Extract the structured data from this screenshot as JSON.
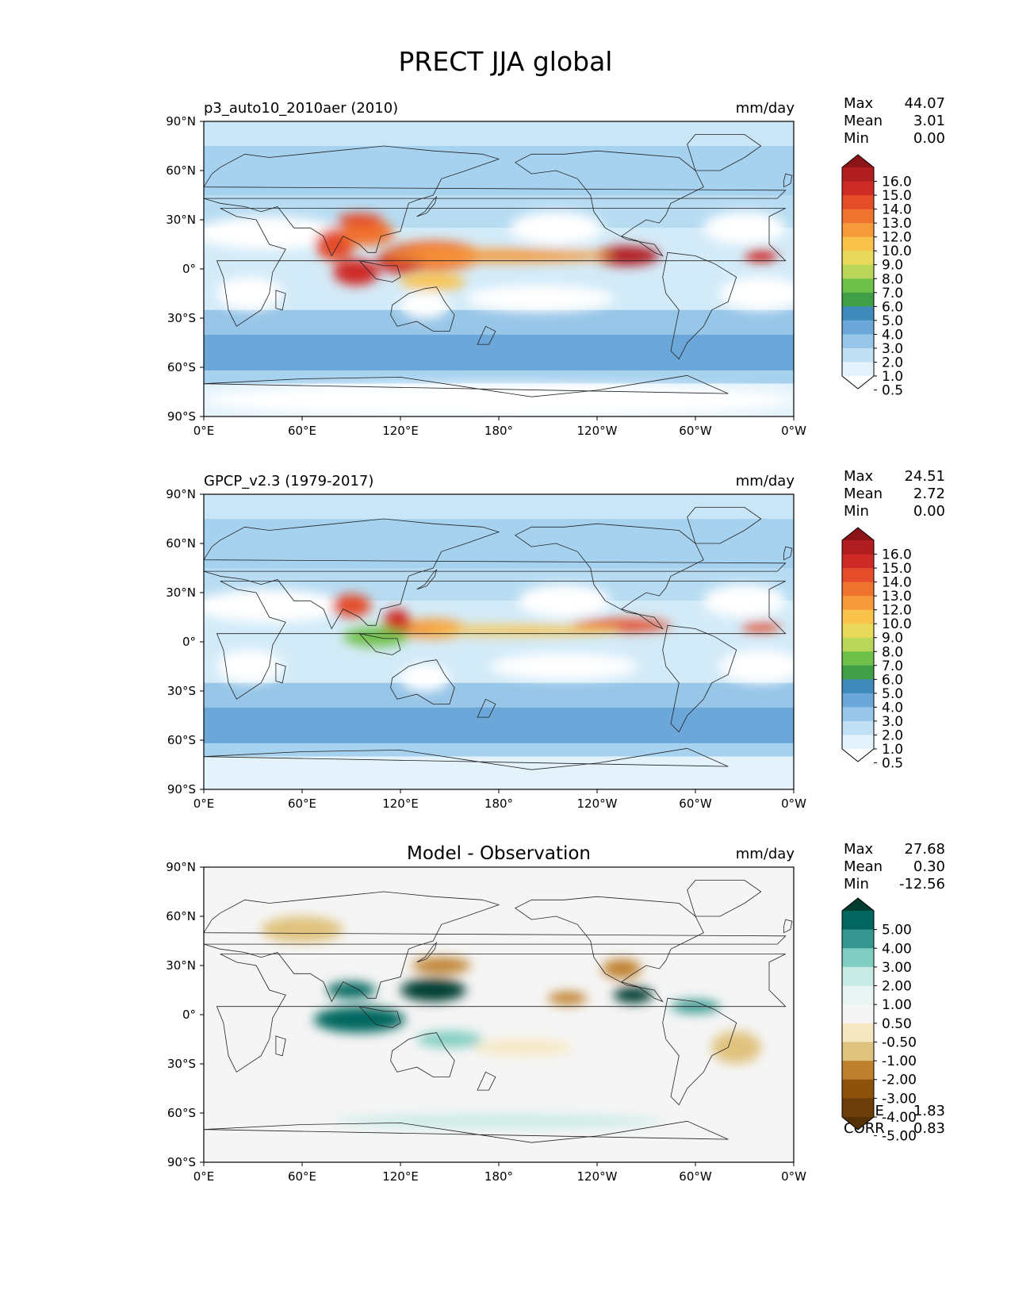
{
  "title": "PRECT JJA global",
  "axes": {
    "lat_labels": [
      "90°N",
      "60°N",
      "30°N",
      "0°",
      "30°S",
      "60°S",
      "90°S"
    ],
    "lon_labels": [
      "0°E",
      "60°E",
      "120°E",
      "180°",
      "120°W",
      "60°W",
      "0°W"
    ]
  },
  "panels": [
    {
      "id": "model",
      "title": "p3_auto10_2010aer (2010)",
      "units": "mm/day",
      "stats": [
        [
          "Max",
          "44.07"
        ],
        [
          "Mean",
          "3.01"
        ],
        [
          "Min",
          "0.00"
        ]
      ],
      "colorbar": {
        "labels": [
          "16.0",
          "15.0",
          "14.0",
          "13.0",
          "12.0",
          "10.0",
          "9.0",
          "8.0",
          "7.0",
          "6.0",
          "5.0",
          "4.0",
          "3.0",
          "2.0",
          "1.0",
          "0.5"
        ],
        "colors": [
          "#8c1418",
          "#b11e22",
          "#cf2b26",
          "#e44c2a",
          "#f0722f",
          "#f69a3a",
          "#f9c34b",
          "#e9d95a",
          "#b9d55a",
          "#6fc04a",
          "#3f9e46",
          "#3e8bbb",
          "#6ba7d8",
          "#97c6e8",
          "#c1e0f4",
          "#e4f3fb",
          "#ffffff"
        ]
      },
      "blobs": [
        {
          "lon": 140,
          "lat": 8,
          "rx": 30,
          "ry": 9,
          "c": "#f06a2e"
        },
        {
          "lon": 120,
          "lat": 5,
          "rx": 14,
          "ry": 8,
          "c": "#cf2b26"
        },
        {
          "lon": 80,
          "lat": 15,
          "rx": 12,
          "ry": 10,
          "c": "#e44c2a"
        },
        {
          "lon": 100,
          "lat": 22,
          "rx": 16,
          "ry": 8,
          "c": "#f0722f"
        },
        {
          "lon": 93,
          "lat": -2,
          "rx": 14,
          "ry": 8,
          "c": "#cf2b26"
        },
        {
          "lon": 95,
          "lat": 30,
          "rx": 14,
          "ry": 4,
          "c": "#e44c2a"
        },
        {
          "lon": 258,
          "lat": 8,
          "rx": 20,
          "ry": 6,
          "c": "#b11e22"
        },
        {
          "lon": 340,
          "lat": 8,
          "rx": 10,
          "ry": 4,
          "c": "#cf2b26"
        },
        {
          "lon": 180,
          "lat": 8,
          "rx": 70,
          "ry": 4,
          "c": "#f69a3a"
        },
        {
          "lon": 140,
          "lat": -8,
          "rx": 20,
          "ry": 5,
          "c": "#f9c34b"
        }
      ],
      "dry": [
        {
          "lon": 40,
          "lat": 22,
          "rx": 45,
          "ry": 10
        },
        {
          "lon": 215,
          "lat": 25,
          "rx": 28,
          "ry": 10
        },
        {
          "lon": 330,
          "lat": 25,
          "rx": 25,
          "ry": 10
        },
        {
          "lon": 205,
          "lat": -18,
          "rx": 45,
          "ry": 8
        },
        {
          "lon": 340,
          "lat": -15,
          "rx": 25,
          "ry": 10
        },
        {
          "lon": 28,
          "lat": -15,
          "rx": 20,
          "ry": 10
        },
        {
          "lon": 135,
          "lat": -22,
          "rx": 15,
          "ry": 8
        },
        {
          "lon": 180,
          "lat": -80,
          "rx": 180,
          "ry": 10
        }
      ]
    },
    {
      "id": "obs",
      "title": "GPCP_v2.3 (1979-2017)",
      "units": "mm/day",
      "stats": [
        [
          "Max",
          "24.51"
        ],
        [
          "Mean",
          "2.72"
        ],
        [
          "Min",
          "0.00"
        ]
      ],
      "colorbar": {
        "labels": [
          "16.0",
          "15.0",
          "14.0",
          "13.0",
          "12.0",
          "10.0",
          "9.0",
          "8.0",
          "7.0",
          "6.0",
          "5.0",
          "4.0",
          "3.0",
          "2.0",
          "1.0",
          "0.5"
        ],
        "colors": [
          "#8c1418",
          "#b11e22",
          "#cf2b26",
          "#e44c2a",
          "#f0722f",
          "#f69a3a",
          "#f9c34b",
          "#e9d95a",
          "#b9d55a",
          "#6fc04a",
          "#3f9e46",
          "#3e8bbb",
          "#6ba7d8",
          "#97c6e8",
          "#c1e0f4",
          "#e4f3fb",
          "#ffffff"
        ]
      },
      "blobs": [
        {
          "lon": 90,
          "lat": 22,
          "rx": 12,
          "ry": 7,
          "c": "#e44c2a"
        },
        {
          "lon": 140,
          "lat": 8,
          "rx": 20,
          "ry": 6,
          "c": "#f69a3a"
        },
        {
          "lon": 118,
          "lat": 12,
          "rx": 8,
          "ry": 8,
          "c": "#cf2b26"
        },
        {
          "lon": 255,
          "lat": 10,
          "rx": 30,
          "ry": 4,
          "c": "#e44c2a"
        },
        {
          "lon": 340,
          "lat": 9,
          "rx": 12,
          "ry": 3,
          "c": "#e44c2a"
        },
        {
          "lon": 195,
          "lat": 7,
          "rx": 60,
          "ry": 3,
          "c": "#f9c34b"
        },
        {
          "lon": 105,
          "lat": 3,
          "rx": 20,
          "ry": 6,
          "c": "#6fc04a"
        }
      ],
      "dry": [
        {
          "lon": 40,
          "lat": 22,
          "rx": 45,
          "ry": 10
        },
        {
          "lon": 220,
          "lat": 25,
          "rx": 28,
          "ry": 10
        },
        {
          "lon": 330,
          "lat": 25,
          "rx": 25,
          "ry": 10
        },
        {
          "lon": 220,
          "lat": -15,
          "rx": 45,
          "ry": 8
        },
        {
          "lon": 340,
          "lat": -15,
          "rx": 25,
          "ry": 10
        },
        {
          "lon": 28,
          "lat": -15,
          "rx": 20,
          "ry": 10
        },
        {
          "lon": 135,
          "lat": -22,
          "rx": 15,
          "ry": 8
        }
      ]
    },
    {
      "id": "diff",
      "title": "Model - Observation",
      "units": "mm/day",
      "stats": [
        [
          "Max",
          "27.68"
        ],
        [
          "Mean",
          "0.30"
        ],
        [
          "Min",
          "-12.56"
        ]
      ],
      "extra": [
        [
          "RMSE",
          "1.83"
        ],
        [
          "CORR",
          "0.83"
        ]
      ],
      "colorbar": {
        "labels": [
          "5.00",
          "4.00",
          "3.00",
          "2.00",
          "1.00",
          "0.50",
          "-0.50",
          "-1.00",
          "-2.00",
          "-3.00",
          "-4.00",
          "-5.00"
        ],
        "colors": [
          "#003c30",
          "#01665e",
          "#35978f",
          "#80cdc1",
          "#c7eae5",
          "#e8f5f3",
          "#f5f5f5",
          "#f6e8c3",
          "#dfc27d",
          "#bf812d",
          "#8c510a",
          "#6b3d08",
          "#543005"
        ]
      },
      "blobs": [
        {
          "lon": 95,
          "lat": -3,
          "rx": 28,
          "ry": 8,
          "c": "#01665e"
        },
        {
          "lon": 140,
          "lat": 15,
          "rx": 20,
          "ry": 7,
          "c": "#003c30"
        },
        {
          "lon": 90,
          "lat": 15,
          "rx": 15,
          "ry": 5,
          "c": "#01665e"
        },
        {
          "lon": 262,
          "lat": 12,
          "rx": 12,
          "ry": 5,
          "c": "#003c30"
        },
        {
          "lon": 300,
          "lat": 5,
          "rx": 15,
          "ry": 4,
          "c": "#35978f"
        },
        {
          "lon": 145,
          "lat": 30,
          "rx": 18,
          "ry": 5,
          "c": "#bf812d"
        },
        {
          "lon": 255,
          "lat": 28,
          "rx": 12,
          "ry": 6,
          "c": "#bf812d"
        },
        {
          "lon": 222,
          "lat": 10,
          "rx": 12,
          "ry": 4,
          "c": "#bf812d"
        },
        {
          "lon": 60,
          "lat": 52,
          "rx": 25,
          "ry": 8,
          "c": "#dfc27d"
        },
        {
          "lon": 195,
          "lat": -20,
          "rx": 30,
          "ry": 5,
          "c": "#f6e8c3"
        },
        {
          "lon": 150,
          "lat": -15,
          "rx": 20,
          "ry": 5,
          "c": "#80cdc1"
        },
        {
          "lon": 180,
          "lat": -65,
          "rx": 100,
          "ry": 4,
          "c": "#c7eae5"
        },
        {
          "lon": 325,
          "lat": -20,
          "rx": 15,
          "ry": 10,
          "c": "#dfc27d"
        }
      ],
      "dry": []
    }
  ],
  "continents": [
    {
      "name": "north-america",
      "pts": [
        [
          190,
          65
        ],
        [
          200,
          70
        ],
        [
          220,
          70
        ],
        [
          240,
          72
        ],
        [
          265,
          70
        ],
        [
          290,
          68
        ],
        [
          300,
          60
        ],
        [
          305,
          50
        ],
        [
          295,
          45
        ],
        [
          285,
          40
        ],
        [
          282,
          33
        ],
        [
          278,
          28
        ],
        [
          270,
          30
        ],
        [
          262,
          25
        ],
        [
          255,
          20
        ],
        [
          265,
          17
        ],
        [
          275,
          10
        ],
        [
          280,
          8
        ],
        [
          275,
          15
        ],
        [
          258,
          18
        ],
        [
          245,
          25
        ],
        [
          238,
          35
        ],
        [
          236,
          45
        ],
        [
          228,
          55
        ],
        [
          215,
          60
        ],
        [
          200,
          58
        ]
      ]
    },
    {
      "name": "south-america",
      "pts": [
        [
          283,
          10
        ],
        [
          300,
          8
        ],
        [
          312,
          3
        ],
        [
          325,
          -5
        ],
        [
          320,
          -20
        ],
        [
          310,
          -25
        ],
        [
          305,
          -35
        ],
        [
          295,
          -45
        ],
        [
          290,
          -55
        ],
        [
          285,
          -50
        ],
        [
          287,
          -40
        ],
        [
          290,
          -25
        ],
        [
          282,
          -15
        ],
        [
          280,
          -5
        ]
      ]
    },
    {
      "name": "africa",
      "pts": [
        [
          345,
          32
        ],
        [
          355,
          37
        ],
        [
          10,
          37
        ],
        [
          20,
          32
        ],
        [
          32,
          30
        ],
        [
          40,
          15
        ],
        [
          50,
          12
        ],
        [
          42,
          -2
        ],
        [
          40,
          -15
        ],
        [
          35,
          -25
        ],
        [
          20,
          -35
        ],
        [
          15,
          -25
        ],
        [
          12,
          -5
        ],
        [
          8,
          5
        ],
        [
          355,
          5
        ],
        [
          345,
          15
        ]
      ]
    },
    {
      "name": "europe-asia",
      "pts": [
        [
          350,
          43
        ],
        [
          360,
          43
        ],
        [
          10,
          40
        ],
        [
          25,
          38
        ],
        [
          35,
          35
        ],
        [
          45,
          38
        ],
        [
          55,
          25
        ],
        [
          65,
          25
        ],
        [
          73,
          20
        ],
        [
          78,
          8
        ],
        [
          85,
          20
        ],
        [
          95,
          15
        ],
        [
          100,
          10
        ],
        [
          105,
          10
        ],
        [
          108,
          20
        ],
        [
          120,
          23
        ],
        [
          122,
          30
        ],
        [
          125,
          40
        ],
        [
          130,
          42
        ],
        [
          140,
          45
        ],
        [
          145,
          55
        ],
        [
          160,
          60
        ],
        [
          180,
          67
        ],
        [
          170,
          70
        ],
        [
          140,
          72
        ],
        [
          110,
          75
        ],
        [
          80,
          72
        ],
        [
          60,
          70
        ],
        [
          40,
          68
        ],
        [
          25,
          70
        ],
        [
          10,
          62
        ],
        [
          5,
          58
        ],
        [
          0,
          50
        ],
        [
          355,
          48
        ]
      ]
    },
    {
      "name": "greenland",
      "pts": [
        [
          300,
          60
        ],
        [
          315,
          60
        ],
        [
          330,
          68
        ],
        [
          340,
          75
        ],
        [
          330,
          82
        ],
        [
          300,
          82
        ],
        [
          295,
          76
        ]
      ]
    },
    {
      "name": "australia",
      "pts": [
        [
          115,
          -22
        ],
        [
          125,
          -15
        ],
        [
          135,
          -12
        ],
        [
          142,
          -11
        ],
        [
          147,
          -20
        ],
        [
          153,
          -28
        ],
        [
          150,
          -38
        ],
        [
          140,
          -38
        ],
        [
          130,
          -32
        ],
        [
          118,
          -35
        ],
        [
          114,
          -28
        ]
      ]
    },
    {
      "name": "antarctica",
      "pts": [
        [
          0,
          -70
        ],
        [
          60,
          -67
        ],
        [
          120,
          -66
        ],
        [
          160,
          -72
        ],
        [
          200,
          -78
        ],
        [
          240,
          -74
        ],
        [
          295,
          -65
        ],
        [
          320,
          -76
        ],
        [
          360,
          -70
        ],
        [
          360,
          -90
        ],
        [
          0,
          -90
        ]
      ]
    },
    {
      "name": "indonesia",
      "pts": [
        [
          95,
          5
        ],
        [
          105,
          -6
        ],
        [
          115,
          -8
        ],
        [
          120,
          -5
        ],
        [
          118,
          2
        ],
        [
          110,
          2
        ],
        [
          100,
          4
        ]
      ]
    },
    {
      "name": "madagascar",
      "pts": [
        [
          44,
          -13
        ],
        [
          50,
          -15
        ],
        [
          48,
          -25
        ],
        [
          44,
          -24
        ]
      ]
    },
    {
      "name": "japan",
      "pts": [
        [
          130,
          32
        ],
        [
          136,
          34
        ],
        [
          141,
          40
        ],
        [
          142,
          44
        ],
        [
          140,
          42
        ],
        [
          135,
          35
        ]
      ]
    },
    {
      "name": "new-zealand",
      "pts": [
        [
          172,
          -35
        ],
        [
          178,
          -38
        ],
        [
          174,
          -46
        ],
        [
          167,
          -46
        ]
      ]
    },
    {
      "name": "uk",
      "pts": [
        [
          354,
          50
        ],
        [
          358,
          52
        ],
        [
          359,
          57
        ],
        [
          355,
          58
        ],
        [
          354,
          54
        ]
      ]
    }
  ]
}
